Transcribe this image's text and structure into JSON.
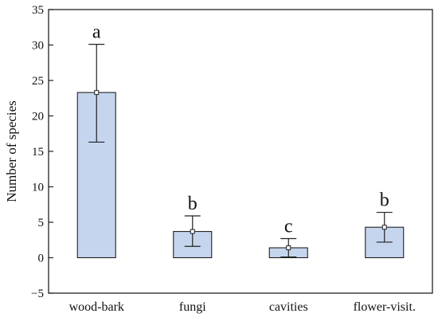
{
  "chart_data": {
    "type": "bar",
    "title": "",
    "xlabel": "",
    "ylabel": "Number of species",
    "ylim": [
      -5,
      35
    ],
    "yticks": [
      -5,
      0,
      5,
      10,
      15,
      20,
      25,
      30,
      35
    ],
    "grid": false,
    "categories": [
      "wood-bark",
      "fungi",
      "cavities",
      "flower-visit."
    ],
    "values": [
      23.3,
      3.7,
      1.4,
      4.3
    ],
    "error_low": [
      16.3,
      1.6,
      0.1,
      2.2
    ],
    "error_high": [
      30.1,
      5.9,
      2.7,
      6.4
    ],
    "letters": [
      "a",
      "b",
      "c",
      "b"
    ],
    "colors": {
      "bar_fill": "#c5d5ee",
      "bar_stroke": "#222222",
      "axis": "#222222"
    }
  }
}
